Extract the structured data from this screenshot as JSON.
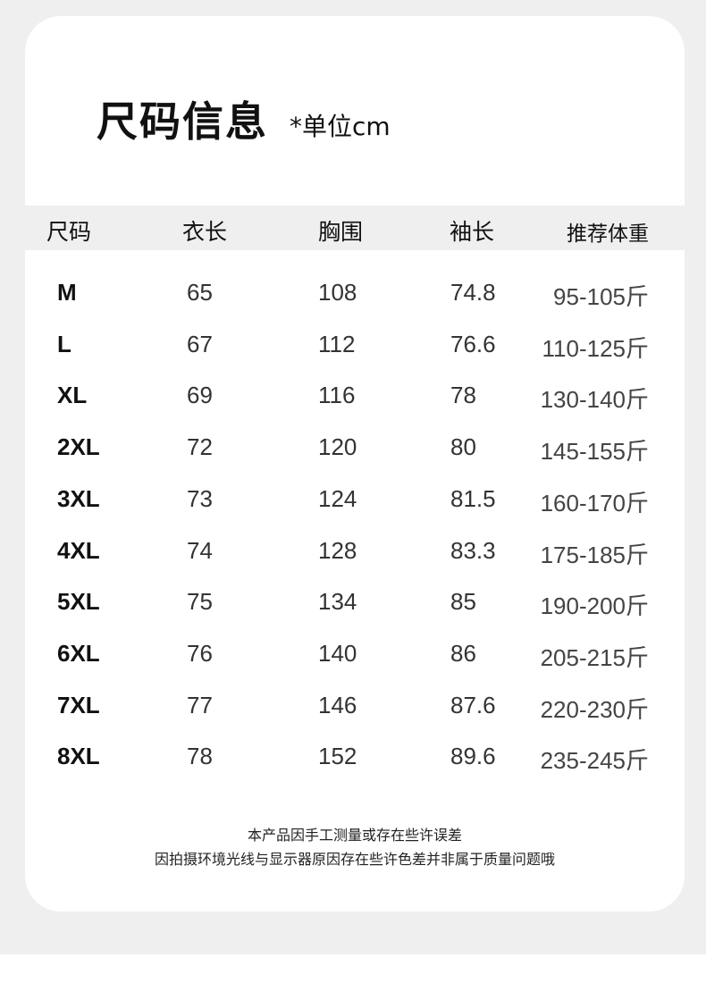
{
  "title": "尺码信息",
  "unit": "*单位cm",
  "headers": [
    "尺码",
    "衣长",
    "胸围",
    "袖长",
    "推荐体重"
  ],
  "rows": [
    [
      "M",
      "65",
      "108",
      "74.8",
      "95-105斤"
    ],
    [
      "L",
      "67",
      "112",
      "76.6",
      "110-125斤"
    ],
    [
      "XL",
      "69",
      "116",
      "78",
      "130-140斤"
    ],
    [
      "2XL",
      "72",
      "120",
      "80",
      "145-155斤"
    ],
    [
      "3XL",
      "73",
      "124",
      "81.5",
      "160-170斤"
    ],
    [
      "4XL",
      "74",
      "128",
      "83.3",
      "175-185斤"
    ],
    [
      "5XL",
      "75",
      "134",
      "85",
      "190-200斤"
    ],
    [
      "6XL",
      "76",
      "140",
      "86",
      "205-215斤"
    ],
    [
      "7XL",
      "77",
      "146",
      "87.6",
      "220-230斤"
    ],
    [
      "8XL",
      "78",
      "152",
      "89.6",
      "235-245斤"
    ]
  ],
  "notes": [
    "本产品因手工测量或存在些许误差",
    "因拍摄环境光线与显示器原因存在些许色差并非属于质量问题哦"
  ]
}
